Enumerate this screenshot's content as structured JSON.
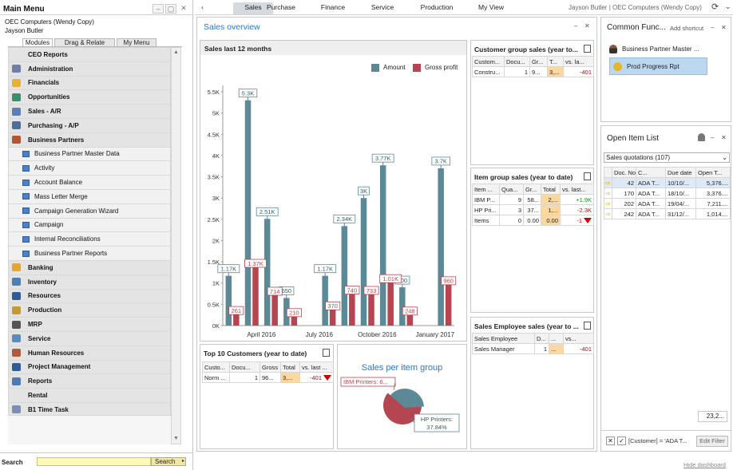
{
  "main_menu": {
    "title": "Main Menu",
    "company": "OEC Computers (Wendy Copy)",
    "user": "Jayson Butler",
    "tabs": [
      "Modules",
      "Drag & Relate",
      "My Menu"
    ],
    "items": [
      {
        "label": "CEO Reports",
        "icon": "none",
        "level": 0
      },
      {
        "label": "Administration",
        "icon": "wrench-icon",
        "level": 0
      },
      {
        "label": "Financials",
        "icon": "pie-coin-icon",
        "level": 0
      },
      {
        "label": "Opportunities",
        "icon": "arrows-icon",
        "level": 0
      },
      {
        "label": "Sales - A/R",
        "icon": "tag-icon",
        "level": 0
      },
      {
        "label": "Purchasing - A/P",
        "icon": "cart-icon",
        "level": 0
      },
      {
        "label": "Business Partners",
        "icon": "people-icon",
        "level": 0
      },
      {
        "label": "Business Partner Master Data",
        "icon": "document-icon",
        "level": 1
      },
      {
        "label": "Activity",
        "icon": "document-icon",
        "level": 1
      },
      {
        "label": "Account Balance",
        "icon": "document-icon",
        "level": 1
      },
      {
        "label": "Mass Letter Merge",
        "icon": "document-icon",
        "level": 1
      },
      {
        "label": "Campaign Generation Wizard",
        "icon": "document-icon",
        "level": 1
      },
      {
        "label": "Campaign",
        "icon": "document-icon",
        "level": 1
      },
      {
        "label": "Internal Reconciliations",
        "icon": "document-icon",
        "level": 1
      },
      {
        "label": "Business Partner Reports",
        "icon": "document-icon",
        "level": 1
      },
      {
        "label": "Banking",
        "icon": "bank-icon",
        "level": 0
      },
      {
        "label": "Inventory",
        "icon": "inventory-icon",
        "level": 0
      },
      {
        "label": "Resources",
        "icon": "resources-icon",
        "level": 0
      },
      {
        "label": "Production",
        "icon": "production-icon",
        "level": 0
      },
      {
        "label": "MRP",
        "icon": "mrp-icon",
        "level": 0
      },
      {
        "label": "Service",
        "icon": "service-icon",
        "level": 0
      },
      {
        "label": "Human Resources",
        "icon": "hr-icon",
        "level": 0
      },
      {
        "label": "Project Management",
        "icon": "project-icon",
        "level": 0
      },
      {
        "label": "Reports",
        "icon": "reports-icon",
        "level": 0
      },
      {
        "label": "Rental",
        "icon": "none",
        "level": 0
      },
      {
        "label": "B1 Time Task",
        "icon": "time-icon",
        "level": 0
      }
    ],
    "search_label": "Search",
    "search_button": "Search"
  },
  "top_tabs": [
    "Sales",
    "Purchase",
    "Finance",
    "Service",
    "Production",
    "My View"
  ],
  "active_tab": "Sales",
  "user_info": "Jayson Butler | OEC Computers (Wendy Copy)",
  "sales_overview": {
    "title": "Sales overview"
  },
  "chart_panel": {
    "title": "Sales last 12 months",
    "legend": [
      "Amount",
      "Gross profit"
    ]
  },
  "chart_data": {
    "type": "bar",
    "title": "Sales last 12 months",
    "series": [
      {
        "name": "Amount",
        "color": "#5b8a96",
        "values": [
          1170,
          5300,
          2510,
          650,
          0,
          1170,
          2340,
          3000,
          3770,
          900,
          0,
          3700
        ],
        "labels": [
          "1.17K",
          "5.3K",
          "2.51K",
          "650",
          "",
          "1.17K",
          "2.34K",
          "3K",
          "3.77K",
          "900",
          "",
          "3.7K"
        ]
      },
      {
        "name": "Gross profit",
        "color": "#b54550",
        "values": [
          261,
          1370,
          714,
          210,
          0,
          370,
          740,
          733,
          1010,
          248,
          0,
          960
        ],
        "labels": [
          "261",
          "1.37K",
          "714",
          "210",
          "",
          "370",
          "740",
          "733",
          "1.01K",
          "248",
          "",
          "960"
        ]
      }
    ],
    "y_ticks": [
      "0K",
      "0.5K",
      "1K",
      "1.5K",
      "2K",
      "2.5K",
      "3K",
      "3.5K",
      "4K",
      "4.5K",
      "5K",
      "5.5K"
    ],
    "x_ticks": [
      {
        "label": "April 2016",
        "index": 1.5
      },
      {
        "label": "July 2016",
        "index": 4.5
      },
      {
        "label": "October 2016",
        "index": 7.5
      },
      {
        "label": "January 2017",
        "index": 10.5
      }
    ],
    "ylim": [
      0,
      5500
    ]
  },
  "customer_group": {
    "title": "Customer group sales (year to...",
    "headers": [
      "Custom...",
      "Docu...",
      "Gr...",
      "T...",
      "vs. la..."
    ],
    "rows": [
      [
        "Constru...",
        "1",
        "9...",
        "3,...",
        "-401"
      ]
    ]
  },
  "item_group": {
    "title": "Item group sales (year to date)",
    "headers": [
      "Item ...",
      "Qua...",
      "Gr...",
      "Total",
      "vs. last..."
    ],
    "rows": [
      [
        "IBM P...",
        "9",
        "58...",
        "2,...",
        "+1.9K"
      ],
      [
        "HP Pri...",
        "3",
        "37...",
        "1,...",
        "-2.3K"
      ],
      [
        "Items",
        "0",
        "0.00",
        "0.00",
        "-1"
      ]
    ]
  },
  "sales_employee": {
    "title": "Sales Employee sales (year to ...",
    "headers": [
      "Sales Employee",
      "D...",
      "...",
      "vs..."
    ],
    "rows": [
      [
        "Sales Manager",
        "1",
        "...",
        "-401"
      ]
    ]
  },
  "top10": {
    "title": "Top 10 Customers (year to date)",
    "headers": [
      "Custo...",
      "Docu...",
      "Gross",
      "Total",
      "vs. last ..."
    ],
    "rows": [
      [
        "Norm ...",
        "1",
        "96...",
        "3,...",
        "-401"
      ]
    ]
  },
  "pie": {
    "title": "Sales per item group",
    "slices": [
      {
        "label": "IBM Printers: 6...",
        "value": 62.16,
        "color": "#b54550"
      },
      {
        "label": "HP Printers: 37.84%",
        "label_line1": "HP Printers:",
        "label_line2": "37.84%",
        "value": 37.84,
        "color": "#5b8a96"
      }
    ]
  },
  "common_functions": {
    "title": "Common Func...",
    "add_shortcut": "Add shortcut",
    "items": [
      "Business Partner Master ...",
      "Prod Progress Rpt"
    ]
  },
  "open_items": {
    "title": "Open Item List",
    "selector": "Sales quotations (107)",
    "headers": [
      "Doc. No.",
      "C...",
      "Due date",
      "Open T..."
    ],
    "rows": [
      [
        "42",
        "ADA T...",
        "10/10/...",
        "5,376...."
      ],
      [
        "170",
        "ADA T...",
        "18/10/...",
        "3,376...."
      ],
      [
        "202",
        "ADA T...",
        "19/04/...",
        "7,211...."
      ],
      [
        "242",
        "ADA T...",
        "31/12/...",
        "1,014...."
      ]
    ],
    "total": "23,2...",
    "filter_text": "[Customer] = 'ADA T...",
    "edit_filter": "Edit Filter"
  },
  "hide_dashboard": "Hide dashboard"
}
